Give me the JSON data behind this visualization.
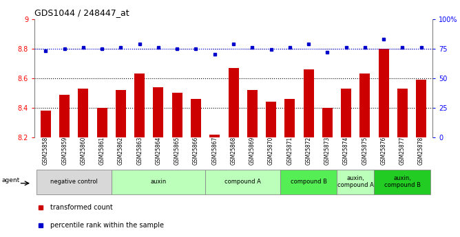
{
  "title": "GDS1044 / 248447_at",
  "samples": [
    "GSM25858",
    "GSM25859",
    "GSM25860",
    "GSM25861",
    "GSM25862",
    "GSM25863",
    "GSM25864",
    "GSM25865",
    "GSM25866",
    "GSM25867",
    "GSM25868",
    "GSM25869",
    "GSM25870",
    "GSM25871",
    "GSM25872",
    "GSM25873",
    "GSM25874",
    "GSM25875",
    "GSM25876",
    "GSM25877",
    "GSM25878"
  ],
  "bar_values": [
    8.38,
    8.49,
    8.53,
    8.4,
    8.52,
    8.63,
    8.54,
    8.5,
    8.46,
    8.22,
    8.67,
    8.52,
    8.44,
    8.46,
    8.66,
    8.4,
    8.53,
    8.63,
    8.8,
    8.53,
    8.59
  ],
  "dot_values": [
    73,
    75,
    76,
    75,
    76,
    79,
    76,
    75,
    75,
    70,
    79,
    76,
    74,
    76,
    79,
    72,
    76,
    76,
    83,
    76,
    76
  ],
  "bar_color": "#cc0000",
  "dot_color": "#0000cc",
  "ylim_left": [
    8.2,
    9.0
  ],
  "ylim_right": [
    0,
    100
  ],
  "yticks_left": [
    8.2,
    8.4,
    8.6,
    8.8,
    9.0
  ],
  "ytick_labels_left": [
    "8.2",
    "8.4",
    "8.6",
    "8.8",
    "9"
  ],
  "yticks_right": [
    0,
    25,
    50,
    75,
    100
  ],
  "ytick_labels_right": [
    "0",
    "25",
    "50",
    "75",
    "100%"
  ],
  "hlines": [
    8.4,
    8.6,
    8.8
  ],
  "groups": [
    {
      "label": "negative control",
      "start": 0,
      "end": 3,
      "color": "#d8d8d8"
    },
    {
      "label": "auxin",
      "start": 4,
      "end": 8,
      "color": "#bbffbb"
    },
    {
      "label": "compound A",
      "start": 9,
      "end": 12,
      "color": "#bbffbb"
    },
    {
      "label": "compound B",
      "start": 13,
      "end": 15,
      "color": "#55ee55"
    },
    {
      "label": "auxin,\ncompound A",
      "start": 16,
      "end": 17,
      "color": "#bbffbb"
    },
    {
      "label": "auxin,\ncompound B",
      "start": 18,
      "end": 20,
      "color": "#22cc22"
    }
  ],
  "legend_items": [
    {
      "label": "transformed count",
      "color": "#cc0000"
    },
    {
      "label": "percentile rank within the sample",
      "color": "#0000cc"
    }
  ],
  "fig_width": 6.68,
  "fig_height": 3.45,
  "dpi": 100
}
